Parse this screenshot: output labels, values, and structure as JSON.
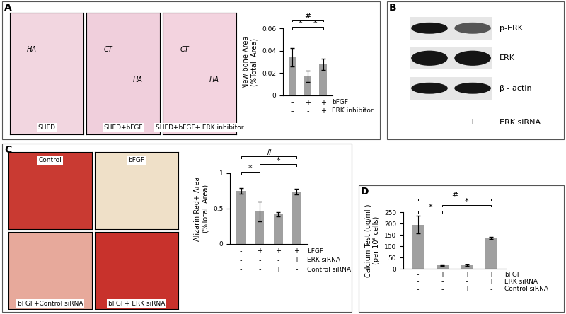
{
  "chart_data": [
    {
      "type": "bar",
      "categories": [
        null,
        null,
        null
      ],
      "values": [
        0.034,
        0.017,
        0.028
      ],
      "errors": [
        0.008,
        0.005,
        0.005
      ],
      "color": "#a0a0a0",
      "ylim": [
        0,
        0.06
      ],
      "yticks": [
        0,
        0.02,
        0.04,
        0.06
      ],
      "y_label": "New bone Area\n(%Total  Area)",
      "tick_labels": "y",
      "treatments": [
        {
          "label": "bFGF",
          "marks": [
            "-",
            "+",
            "+"
          ]
        },
        {
          "label": "ERK inhibitor",
          "marks": [
            "-",
            "-",
            "+"
          ]
        }
      ],
      "annotations": [
        {
          "text": "*",
          "from": 0,
          "to": 1
        },
        {
          "text": "*",
          "from": 1,
          "to": 2
        },
        {
          "text": "#",
          "from": 0,
          "to": 2
        }
      ]
    },
    {
      "type": "bar",
      "categories": [
        null,
        null,
        null,
        null
      ],
      "values": [
        0.75,
        0.46,
        0.42,
        0.74
      ],
      "errors": [
        0.04,
        0.14,
        0.03,
        0.04
      ],
      "color": "#a0a0a0",
      "ylim": [
        0,
        1
      ],
      "yticks": [
        0,
        0.5,
        1
      ],
      "y_label": "Alizarin Red+ Area\n(%Total  Area)",
      "tick_labels": "y",
      "treatments": [
        {
          "label": "bFGF",
          "marks": [
            "-",
            "+",
            "+",
            "+"
          ]
        },
        {
          "label": "ERK siRNA",
          "marks": [
            "-",
            "-",
            "-",
            "+"
          ]
        },
        {
          "label": "Control siRNA",
          "marks": [
            "-",
            "-",
            "+",
            "-"
          ]
        }
      ],
      "annotations": [
        {
          "text": "*",
          "from": 0,
          "to": 1
        },
        {
          "text": "*",
          "from": 1,
          "to": 3
        },
        {
          "text": "#",
          "from": 0,
          "to": 3
        }
      ]
    },
    {
      "type": "bar",
      "categories": [
        null,
        null,
        null,
        null
      ],
      "values": [
        195,
        15,
        16,
        135
      ],
      "errors": [
        40,
        2,
        2,
        5
      ],
      "color": "#a0a0a0",
      "ylim": [
        0,
        250
      ],
      "yticks": [
        0,
        50,
        100,
        150,
        200,
        250
      ],
      "y_label": "Calcium Test (ug/ml )\n(per 10⁶ cells)",
      "tick_labels": "y",
      "treatments": [
        {
          "label": "bFGF",
          "marks": [
            "-",
            "+",
            "+",
            "+"
          ]
        },
        {
          "label": "ERK siRNA",
          "marks": [
            "-",
            "-",
            "-",
            "+"
          ]
        },
        {
          "label": "Control siRNA",
          "marks": [
            "-",
            "-",
            "+",
            "-"
          ]
        }
      ],
      "annotations": [
        {
          "text": "*",
          "from": 0,
          "to": 1
        },
        {
          "text": "*",
          "from": 1,
          "to": 3
        },
        {
          "text": "#",
          "from": 0,
          "to": 3
        }
      ]
    }
  ],
  "panels": [
    {
      "label": "A",
      "images": [
        {
          "caption": "SHED",
          "labels": [
            "HA"
          ]
        },
        {
          "caption": "SHED+bFGF",
          "labels": [
            "CT",
            "HA"
          ]
        },
        {
          "caption": "SHED+bFGF+ ERK inhibitor",
          "labels": [
            "CT",
            "HA"
          ]
        }
      ]
    },
    {
      "label": "B",
      "blot": {
        "rows": [
          "p-ERK",
          "ERK",
          "β - actin"
        ],
        "condition": "ERK siRNA",
        "lanes": [
          "-",
          "+"
        ]
      }
    },
    {
      "label": "C",
      "images": [
        {
          "caption": "Control",
          "labels": []
        },
        {
          "caption": "bFGF",
          "labels": []
        },
        {
          "caption": "bFGF+Control siRNA",
          "labels": []
        },
        {
          "caption": "bFGF+ ERK siRNA",
          "labels": []
        }
      ]
    },
    {
      "label": "D"
    }
  ]
}
